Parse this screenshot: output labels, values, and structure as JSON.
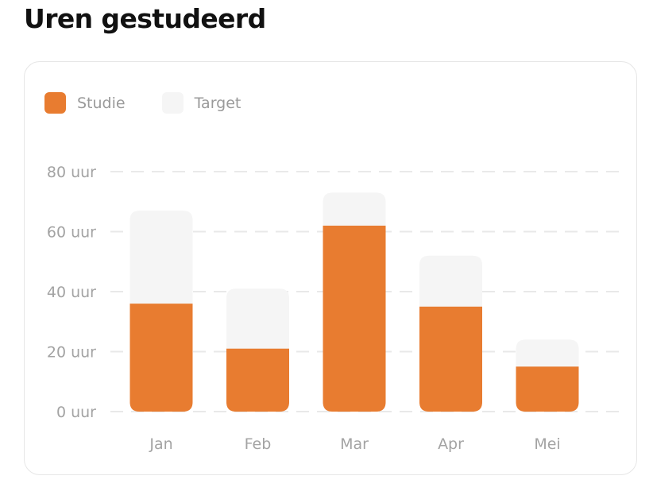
{
  "page": {
    "title": "Uren gestudeerd"
  },
  "colors": {
    "studie": "#E87C30",
    "target": "#F5F5F5",
    "grid": "#E9E9E9",
    "text_muted": "#A3A3A3"
  },
  "chart_data": {
    "type": "bar",
    "categories": [
      "Jan",
      "Feb",
      "Mar",
      "Apr",
      "Mei"
    ],
    "series": [
      {
        "name": "Studie",
        "values": [
          36,
          21,
          62,
          35,
          15
        ]
      },
      {
        "name": "Target",
        "values": [
          67,
          41,
          73,
          52,
          24
        ]
      }
    ],
    "y_ticks": [
      0,
      20,
      40,
      60,
      80
    ],
    "y_tick_labels": [
      "0 uur",
      "20 uur",
      "40 uur",
      "60 uur",
      "80 uur"
    ],
    "ylim": [
      0,
      80
    ],
    "grid": true,
    "legend_position": "top-left",
    "layout": "overlapping"
  }
}
